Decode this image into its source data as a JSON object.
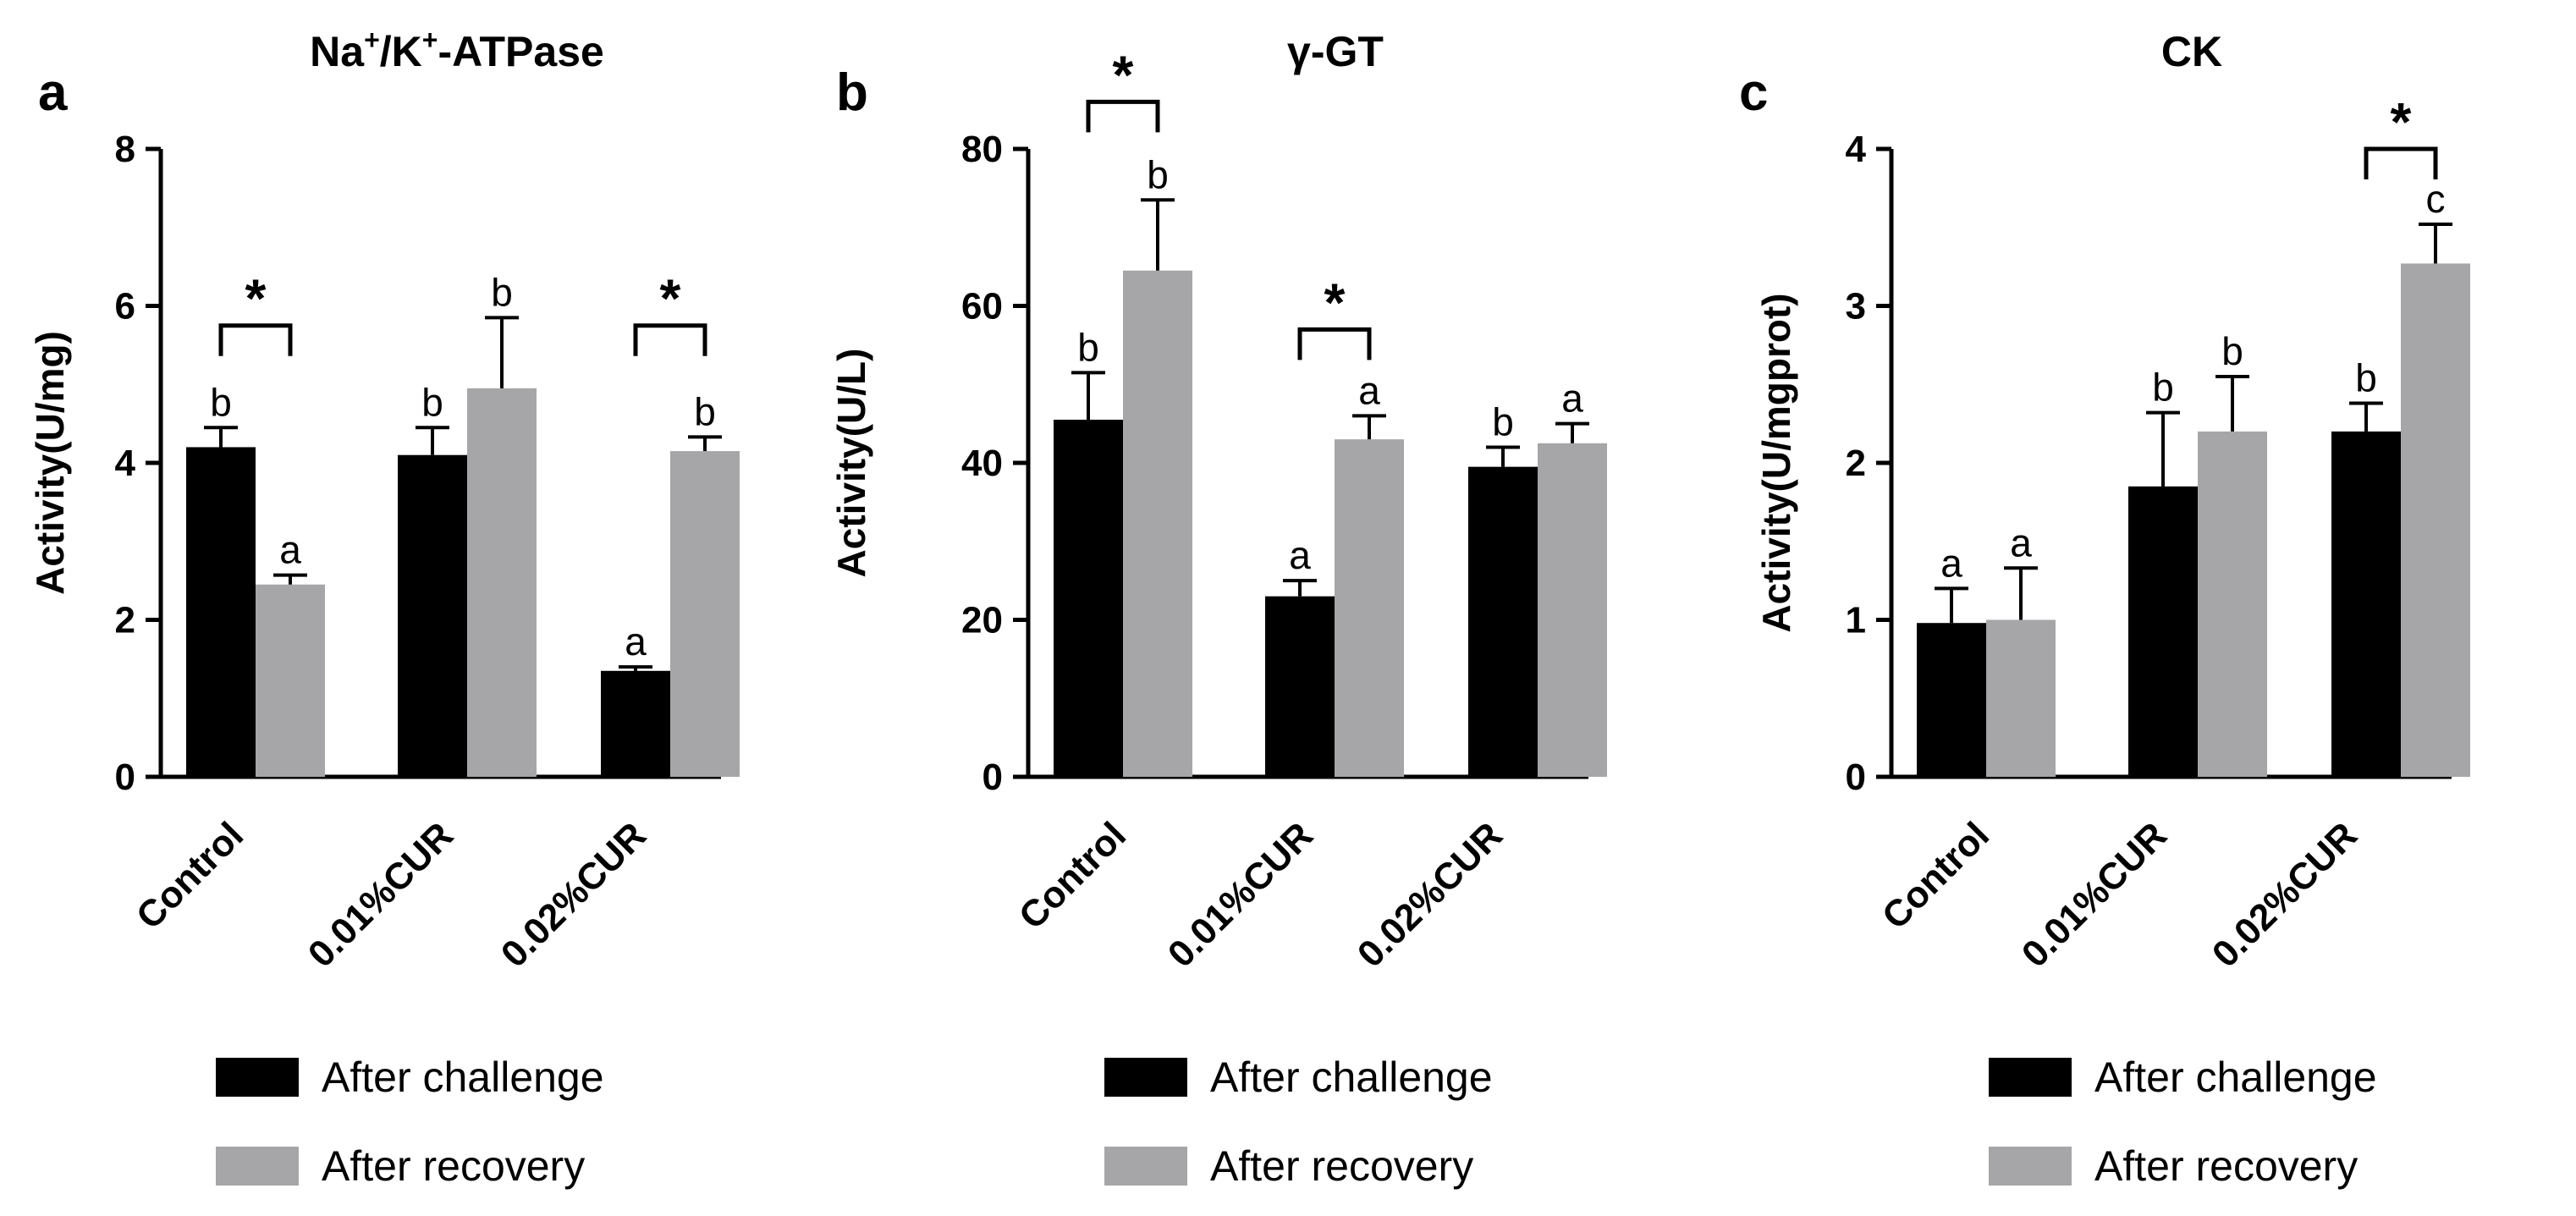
{
  "chart_data": [
    {
      "type": "bar",
      "panel": "a",
      "title_main": "Na",
      "title_sup1": "+",
      "title_mid": "/K",
      "title_sup2": "+",
      "title_end": "-ATPase",
      "title": "Na+/K+-ATPase",
      "xlabel": "",
      "ylabel": "Activity(U/mg)",
      "ylim": [
        0,
        8
      ],
      "yticks": [
        0,
        2,
        4,
        6,
        8
      ],
      "categories": [
        "Control",
        "0.01%CUR",
        "0.02%CUR"
      ],
      "series": [
        {
          "name": "After challenge",
          "color": "#000000",
          "values": [
            4.2,
            4.1,
            1.35
          ],
          "errors": [
            0.25,
            0.35,
            0.05
          ],
          "letters": [
            "b",
            "b",
            "a"
          ]
        },
        {
          "name": "After recovery",
          "color": "#a6a6a8",
          "values": [
            2.45,
            4.95,
            4.15
          ],
          "errors": [
            0.12,
            0.9,
            0.18
          ],
          "letters": [
            "a",
            "b",
            "b"
          ]
        }
      ],
      "significance": [
        {
          "category": 0,
          "bracket_y": 5.75,
          "label": "*"
        },
        {
          "category": 2,
          "bracket_y": 5.75,
          "label": "*"
        }
      ]
    },
    {
      "type": "bar",
      "panel": "b",
      "title": "γ-GT",
      "xlabel": "",
      "ylabel": "Activity(U/L)",
      "ylim": [
        0,
        80
      ],
      "yticks": [
        0,
        20,
        40,
        60,
        80
      ],
      "categories": [
        "Control",
        "0.01%CUR",
        "0.02%CUR"
      ],
      "series": [
        {
          "name": "After challenge",
          "color": "#000000",
          "values": [
            45.5,
            23,
            39.5
          ],
          "errors": [
            6,
            2,
            2.5
          ],
          "letters": [
            "b",
            "a",
            "b"
          ]
        },
        {
          "name": "After recovery",
          "color": "#a6a6a8",
          "values": [
            64.5,
            43,
            42.5
          ],
          "errors": [
            9,
            3,
            2.5
          ],
          "letters": [
            "b",
            "a",
            "a"
          ]
        }
      ],
      "significance": [
        {
          "category": 0,
          "bracket_y": 86,
          "label": "*"
        },
        {
          "category": 1,
          "bracket_y": 57,
          "label": "*"
        }
      ]
    },
    {
      "type": "bar",
      "panel": "c",
      "title": "CK",
      "xlabel": "",
      "ylabel": "Activity(U/mgprot)",
      "ylim": [
        0,
        4
      ],
      "yticks": [
        0,
        1,
        2,
        3,
        4
      ],
      "categories": [
        "Control",
        "0.01%CUR",
        "0.02%CUR"
      ],
      "series": [
        {
          "name": "After challenge",
          "color": "#000000",
          "values": [
            0.98,
            1.85,
            2.2
          ],
          "errors": [
            0.22,
            0.47,
            0.18
          ],
          "letters": [
            "a",
            "b",
            "b"
          ]
        },
        {
          "name": "After recovery",
          "color": "#a6a6a8",
          "values": [
            1.0,
            2.2,
            3.27
          ],
          "errors": [
            0.33,
            0.35,
            0.25
          ],
          "letters": [
            "a",
            "b",
            "c"
          ]
        }
      ],
      "significance": [
        {
          "category": 2,
          "bracket_y": 4.0,
          "label": "*"
        }
      ]
    }
  ]
}
